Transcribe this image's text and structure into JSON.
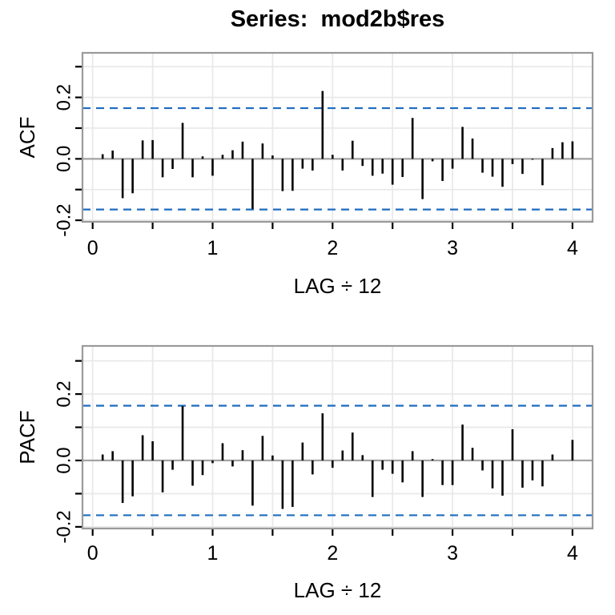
{
  "title": "Series:  mod2b$res",
  "colors": {
    "background": "#ffffff",
    "bar": "#000000",
    "confidence_band": "#1e6cbe",
    "grid": "#e9e9e9",
    "zero_line": "#a3a3a3",
    "panel_border": "#9a9a9a",
    "tick": "#000000",
    "text": "#000000"
  },
  "chart_data": [
    {
      "type": "bar",
      "title": "Series:  mod2b$res",
      "ylabel": "ACF",
      "xlabel": "LAG ÷ 12",
      "lag_divisor": 12,
      "xlim": [
        -0.085,
        4.17
      ],
      "ylim": [
        -0.205,
        0.345
      ],
      "grid": true,
      "confidence_level": 0.165,
      "x_ticks": [
        {
          "value": 0,
          "label": "0"
        },
        {
          "value": 1,
          "label": "1"
        },
        {
          "value": 2,
          "label": "2"
        },
        {
          "value": 3,
          "label": "3"
        },
        {
          "value": 4,
          "label": "4"
        }
      ],
      "x_ticks_minor": [
        0.5,
        1.5,
        2.5,
        3.5
      ],
      "y_ticks": [
        -0.2,
        -0.1,
        0,
        0.1,
        0.2,
        0.3
      ],
      "y_tick_labels": [
        {
          "value": 0.2,
          "label": "0.2"
        },
        {
          "value": 0,
          "label": "0.0"
        },
        {
          "value": -0.2,
          "label": "-0.2"
        }
      ],
      "lags": [
        1,
        2,
        3,
        4,
        5,
        6,
        7,
        8,
        9,
        10,
        11,
        12,
        13,
        14,
        15,
        16,
        17,
        18,
        19,
        20,
        21,
        22,
        23,
        24,
        25,
        26,
        27,
        28,
        29,
        30,
        31,
        32,
        33,
        34,
        35,
        36,
        37,
        38,
        39,
        40,
        41,
        42,
        43,
        44,
        45,
        46,
        47,
        48
      ],
      "values": [
        0.015,
        0.027,
        -0.128,
        -0.112,
        0.06,
        0.061,
        -0.06,
        -0.033,
        0.117,
        -0.06,
        0.008,
        -0.055,
        0.013,
        0.028,
        0.056,
        -0.163,
        0.05,
        0.011,
        -0.105,
        -0.104,
        -0.032,
        -0.038,
        0.221,
        0.013,
        -0.038,
        0.059,
        -0.023,
        -0.055,
        -0.048,
        -0.084,
        -0.059,
        0.133,
        -0.131,
        -0.008,
        -0.072,
        -0.032,
        0.104,
        0.066,
        -0.045,
        -0.058,
        -0.091,
        -0.017,
        -0.049,
        -0.003,
        -0.086,
        0.035,
        0.054,
        0.057
      ]
    },
    {
      "type": "bar",
      "title": "",
      "ylabel": "PACF",
      "xlabel": "LAG ÷ 12",
      "lag_divisor": 12,
      "xlim": [
        -0.085,
        4.17
      ],
      "ylim": [
        -0.205,
        0.345
      ],
      "grid": true,
      "confidence_level": 0.165,
      "x_ticks": [
        {
          "value": 0,
          "label": "0"
        },
        {
          "value": 1,
          "label": "1"
        },
        {
          "value": 2,
          "label": "2"
        },
        {
          "value": 3,
          "label": "3"
        },
        {
          "value": 4,
          "label": "4"
        }
      ],
      "x_ticks_minor": [
        0.5,
        1.5,
        2.5,
        3.5
      ],
      "y_ticks": [
        -0.2,
        -0.1,
        0,
        0.1,
        0.2,
        0.3
      ],
      "y_tick_labels": [
        {
          "value": 0.2,
          "label": "0.2"
        },
        {
          "value": 0,
          "label": "0.0"
        },
        {
          "value": -0.2,
          "label": "-0.2"
        }
      ],
      "lags": [
        1,
        2,
        3,
        4,
        5,
        6,
        7,
        8,
        9,
        10,
        11,
        12,
        13,
        14,
        15,
        16,
        17,
        18,
        19,
        20,
        21,
        22,
        23,
        24,
        25,
        26,
        27,
        28,
        29,
        30,
        31,
        32,
        33,
        34,
        35,
        36,
        37,
        38,
        39,
        40,
        41,
        42,
        43,
        44,
        45,
        46,
        47,
        48
      ],
      "values": [
        0.018,
        0.028,
        -0.128,
        -0.108,
        0.076,
        0.058,
        -0.096,
        -0.028,
        0.164,
        -0.076,
        -0.044,
        -0.008,
        0.052,
        -0.018,
        0.031,
        -0.136,
        0.074,
        0.015,
        -0.146,
        -0.14,
        0.054,
        -0.042,
        0.142,
        -0.022,
        0.03,
        0.084,
        0.016,
        -0.11,
        -0.028,
        -0.04,
        -0.066,
        0.028,
        -0.11,
        0.004,
        -0.074,
        -0.074,
        0.108,
        0.038,
        -0.03,
        -0.084,
        -0.106,
        0.094,
        -0.082,
        -0.06,
        -0.078,
        0.018,
        0.0,
        0.062
      ]
    }
  ]
}
